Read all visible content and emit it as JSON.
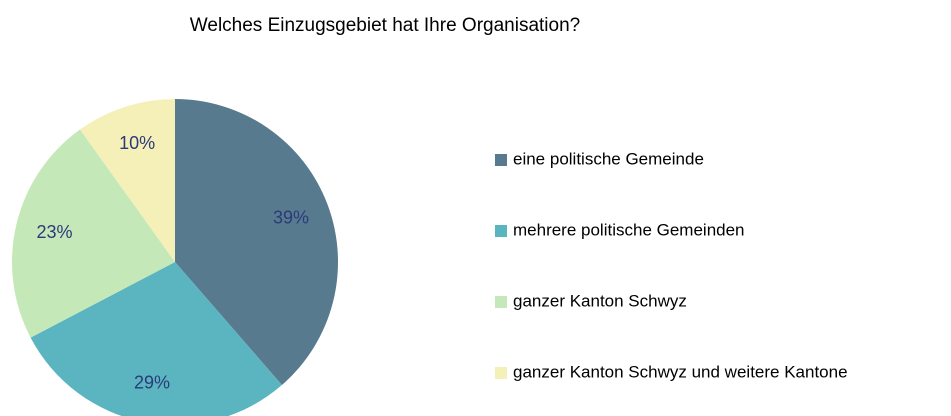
{
  "chart_data": {
    "type": "pie",
    "title": "Welches Einzugsgebiet hat Ihre Organisation?",
    "categories": [
      "eine politische Gemeinde",
      "mehrere politische Gemeinden",
      "ganzer Kanton Schwyz",
      "ganzer Kanton Schwyz und weitere Kantone"
    ],
    "values": [
      39,
      29,
      23,
      10
    ],
    "value_labels": [
      "39%",
      "29%",
      "23%",
      "10%"
    ],
    "colors": [
      "#587a8e",
      "#5ab5c0",
      "#c5e8b8",
      "#f5f0b8"
    ],
    "legend": "right"
  }
}
